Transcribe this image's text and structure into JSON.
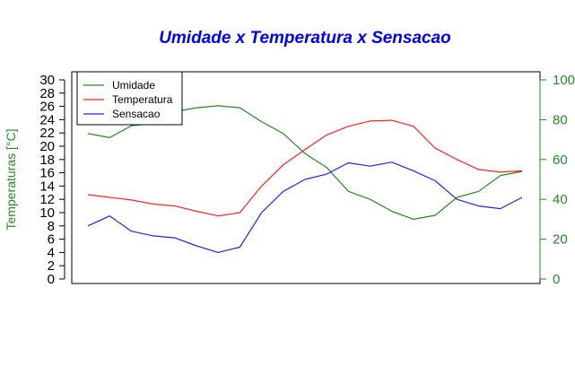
{
  "colors": {
    "title": "#0000ff",
    "left_axis_label": "#228b22",
    "right_axis": "#228b22",
    "umidade": "#228b22",
    "temperatura": "#ff2222",
    "sensacao": "#2222ff"
  },
  "chart_data": {
    "type": "line",
    "title": "Umidade x Temperatura x Sensacao",
    "ylabel": "Temperaturas [°C]",
    "y2label": "",
    "xlabel": "",
    "ylim": [
      0,
      30
    ],
    "y2lim": [
      0,
      100
    ],
    "yticks": [
      0,
      2,
      4,
      6,
      8,
      10,
      12,
      14,
      16,
      18,
      20,
      22,
      24,
      26,
      28,
      30
    ],
    "y2ticks": [
      0,
      20,
      40,
      60,
      80,
      100
    ],
    "x_axis_shown": false,
    "grid": false,
    "legend_position": "top-left",
    "legend_entries": [
      "Umidade",
      "Temperatura",
      "Sensacao"
    ],
    "x": [
      0,
      5,
      10,
      15,
      20,
      25,
      30,
      35,
      40,
      45,
      50,
      55,
      60,
      65,
      70,
      75,
      80,
      85,
      90,
      95,
      100
    ],
    "series": [
      {
        "name": "Umidade",
        "axis": "right",
        "values": [
          73,
          71,
          77,
          78,
          84,
          86,
          87,
          86,
          79,
          73,
          63,
          56,
          44,
          40,
          34,
          30,
          32,
          41,
          44,
          52,
          54
        ]
      },
      {
        "name": "Temperatura",
        "axis": "left",
        "values": [
          12.7,
          12.3,
          11.9,
          11.3,
          11.0,
          10.2,
          9.5,
          10.0,
          14.0,
          17.2,
          19.5,
          21.7,
          23.0,
          23.8,
          23.9,
          23.0,
          19.7,
          18.0,
          16.5,
          16.1,
          16.3
        ]
      },
      {
        "name": "Sensacao",
        "axis": "left",
        "values": [
          8.0,
          9.5,
          7.2,
          6.5,
          6.2,
          5.0,
          4.0,
          4.8,
          10.0,
          13.2,
          15.0,
          15.8,
          17.5,
          17.0,
          17.6,
          16.3,
          14.8,
          12.0,
          11.0,
          10.6,
          12.3
        ]
      }
    ]
  }
}
